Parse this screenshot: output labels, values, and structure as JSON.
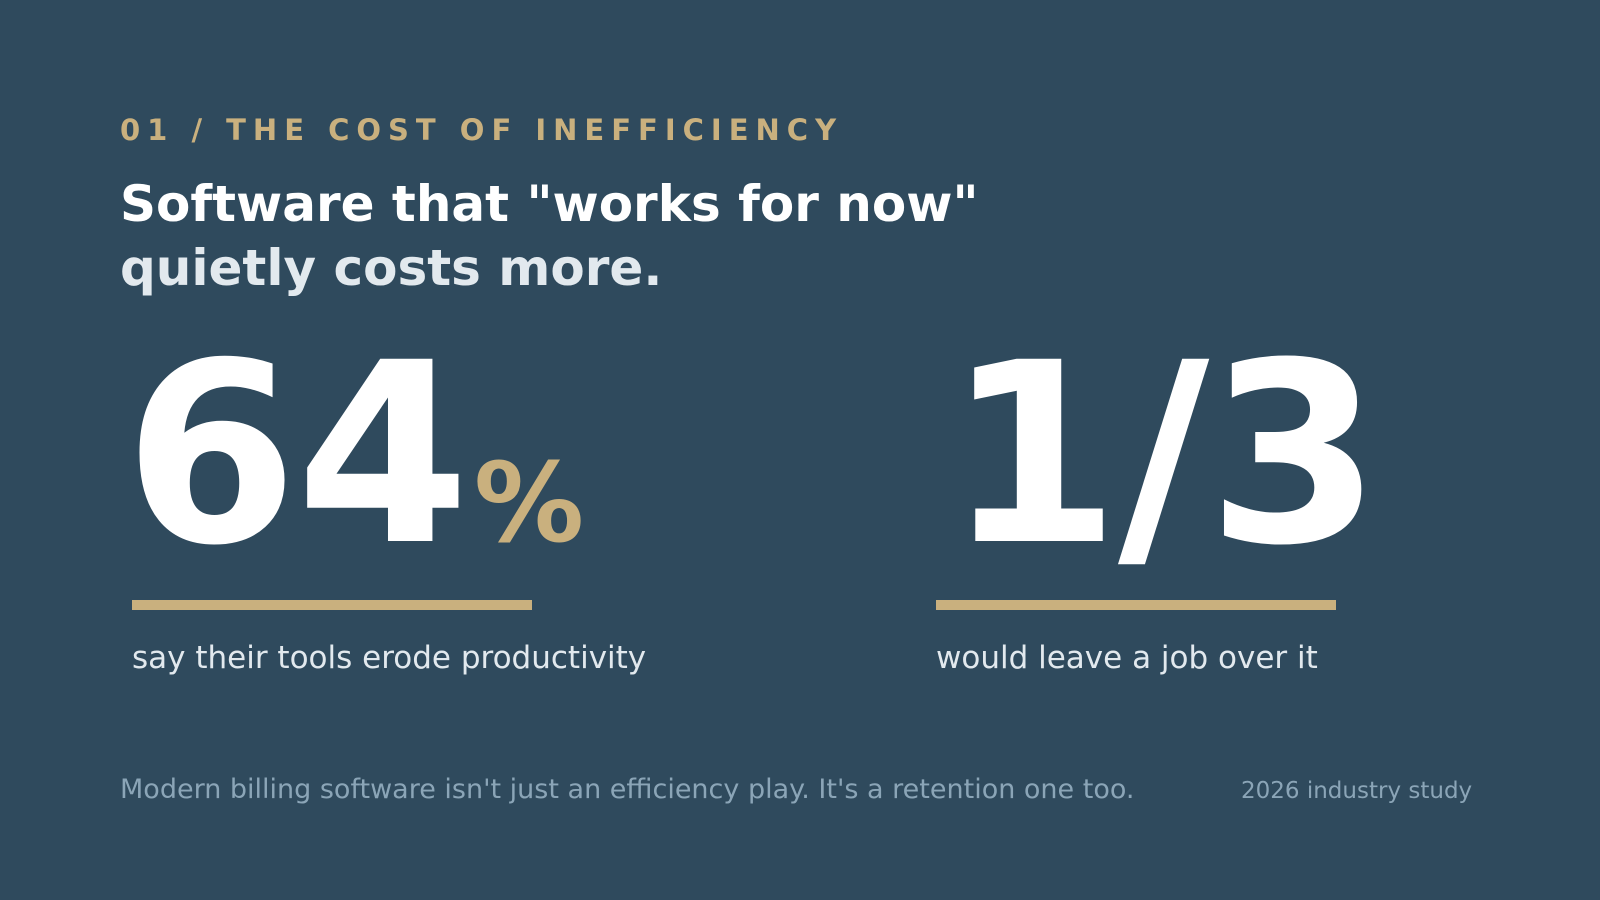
{
  "colors": {
    "background": "#2f4a5d",
    "accent": "#c9b07e",
    "heading": "#ffffff",
    "heading_secondary": "#e2e9ee",
    "muted": "#8ba5b7"
  },
  "eyebrow": "01 / THE COST OF INEFFICIENCY",
  "headline": {
    "line1": "Software that \"works for now\"",
    "line2": "quietly costs more."
  },
  "stats": [
    {
      "value": "64",
      "suffix": "%",
      "caption": "say their tools erode productivity"
    },
    {
      "value": "1/3",
      "suffix": "",
      "caption": "would leave a job over it"
    }
  ],
  "footer": {
    "note": "Modern billing software isn't just an efficiency play. It's a retention one too.",
    "source": "2026 industry study"
  }
}
